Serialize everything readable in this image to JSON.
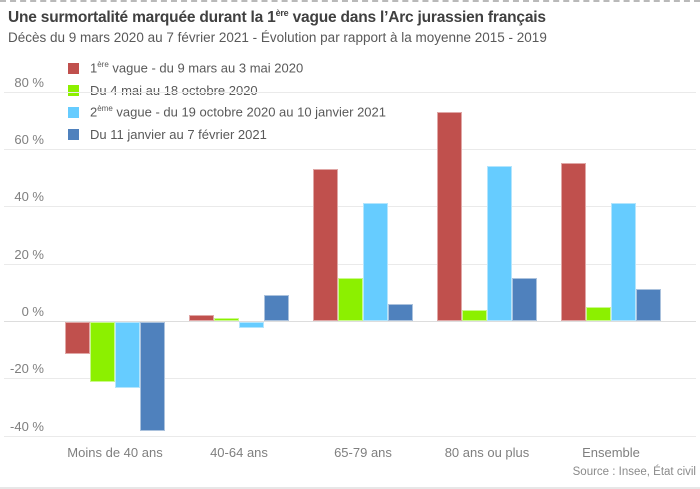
{
  "chart_data": {
    "type": "bar",
    "title": "Une surmortalité marquée durant la 1ère vague dans l’Arc jurassien français",
    "title_parts": [
      "Une surmortalité marquée durant la 1",
      "ère",
      " vague dans l’Arc jurassien français"
    ],
    "subtitle": "Décès du 9 mars 2020 au 7 février 2021 - Évolution par rapport à la moyenne 2015 - 2019",
    "source": "Source : Insee, État civil",
    "unit": "%",
    "grid": true,
    "legend_position": "top-left",
    "ylim": [
      -40,
      80
    ],
    "ytick_step": 20,
    "yticks": [
      {
        "value": 80,
        "label": "80 %"
      },
      {
        "value": 60,
        "label": "60 %"
      },
      {
        "value": 40,
        "label": "40 %"
      },
      {
        "value": 20,
        "label": "20 %"
      },
      {
        "value": 0,
        "label": "0 %"
      },
      {
        "value": -20,
        "label": "-20 %"
      },
      {
        "value": -40,
        "label": "-40 %"
      }
    ],
    "categories": [
      "Moins de 40 ans",
      "40-64 ans",
      "65-79 ans",
      "80 ans ou plus",
      "Ensemble"
    ],
    "series": [
      {
        "name": "1ère vague - du 9 mars au 3 mai 2020",
        "name_parts": [
          "1",
          "ère",
          " vague - du 9 mars au 3 mai 2020"
        ],
        "color": "#c0504d",
        "border_color": "#e0a7a6",
        "values": [
          -11,
          2,
          53,
          73,
          55
        ]
      },
      {
        "name": "Du 4 mai au 18 octobre 2020",
        "name_parts": [
          "Du 4 mai au 18 octobre 2020",
          "",
          ""
        ],
        "color": "#8cf000",
        "border_color": "#c9f98c",
        "values": [
          -21,
          1,
          15,
          4,
          5
        ]
      },
      {
        "name": "2ème vague - du 19 octobre 2020 au 10 janvier 2021",
        "name_parts": [
          "2",
          "ème",
          " vague - du 19 octobre 2020 au 10 janvier 2021"
        ],
        "color": "#66ccff",
        "border_color": "#b3e5fd",
        "values": [
          -23,
          -2,
          41,
          54,
          41
        ]
      },
      {
        "name": "Du 11 janvier au 7 février 2021",
        "name_parts": [
          "Du 11 janvier au 7 février 2021",
          "",
          ""
        ],
        "color": "#4f81bd",
        "border_color": "#abc2dd",
        "values": [
          -38,
          9,
          6,
          15,
          11
        ]
      }
    ]
  }
}
